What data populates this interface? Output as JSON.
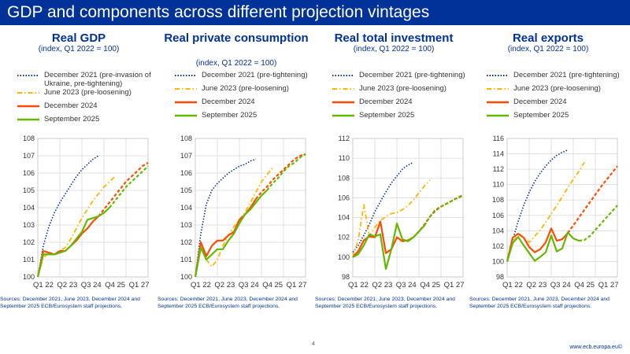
{
  "page_title": "GDP and components across different projection vintages",
  "page_number": "4",
  "footer_url": "www.ecb.europa.eu©",
  "colors": {
    "header": "#003299",
    "dec2021": "#003299",
    "jun2023": "#ffb400",
    "dec2024": "#ff4b00",
    "sep2025": "#65b800"
  },
  "panels": [
    {
      "title": "Real GDP",
      "subtitle": "(index, Q1 2022 = 100)",
      "legend": [
        {
          "label": "December 2021 (pre-invasion of Ukraine, pre-tightening)",
          "series": "dec2021"
        },
        {
          "label": "June 2023 (pre-loosening)",
          "series": "jun2023"
        },
        {
          "label": "December 2024",
          "series": "dec2024"
        },
        {
          "label": "September 2025",
          "series": "sep2025"
        }
      ],
      "sources": "Sources: December 2021, June 2023, December 2024 and September 2025 ECB/Eurosystem staff projections."
    },
    {
      "title": "Real private consumption",
      "subtitle": "(index, Q1 2022 = 100)",
      "legend": [
        {
          "label": "December 2021 (pre-tightening)",
          "series": "dec2021"
        },
        {
          "label": "June 2023 (pre-loosening)",
          "series": "jun2023"
        },
        {
          "label": "December 2024",
          "series": "dec2024"
        },
        {
          "label": "September 2025",
          "series": "sep2025"
        }
      ],
      "sources": "Sources: December 2021, June 2023, December 2024 and September 2025 ECB/Eurosystem staff projections."
    },
    {
      "title": "Real total investment",
      "subtitle": "(index, Q1 2022 = 100)",
      "legend": [
        {
          "label": "December 2021 (pre-tightening)",
          "series": "dec2021"
        },
        {
          "label": "June 2023 (pre-loosening)",
          "series": "jun2023"
        },
        {
          "label": "December 2024",
          "series": "dec2024"
        },
        {
          "label": "September 2025",
          "series": "sep2025"
        }
      ],
      "sources": "Sources: December 2021, June 2023, December 2024 and September 2025 ECB/Eurosystem staff projections."
    },
    {
      "title": "Real exports",
      "subtitle": "(index, Q1 2022 = 100)",
      "legend": [
        {
          "label": "December 2021 (pre-tightening)",
          "series": "dec2021"
        },
        {
          "label": "June 2023 (pre-loosening)",
          "series": "jun2023"
        },
        {
          "label": "December 2024",
          "series": "dec2024"
        },
        {
          "label": "September 2025",
          "series": "sep2025"
        }
      ],
      "sources": "Sources: December 2021, June 2023, December 2024 and September 2025 ECB/Eurosystem staff projections."
    }
  ],
  "chart_data": [
    {
      "type": "line",
      "title": "Real GDP",
      "ylabel": "index, Q1 2022 = 100",
      "ylim": [
        100,
        108
      ],
      "yticks": [
        100,
        101,
        102,
        103,
        104,
        105,
        106,
        107,
        108
      ],
      "x_tick_labels": [
        "Q1 22",
        "Q2 23",
        "Q3 24",
        "Q4 25",
        "Q1 27"
      ],
      "x_range": [
        0,
        20
      ],
      "series": [
        {
          "name": "December 2021 (pre-invasion of Ukraine, pre-tightening)",
          "key": "dec2021",
          "style": "dotted",
          "x": [
            0,
            1,
            2,
            3,
            4,
            5,
            6,
            7,
            8,
            9,
            10,
            11
          ],
          "values": [
            100,
            101.8,
            102.9,
            103.7,
            104.3,
            104.8,
            105.3,
            105.8,
            106.2,
            106.5,
            106.8,
            107.0
          ]
        },
        {
          "name": "June 2023 (pre-loosening)",
          "key": "jun2023",
          "style": "dashdot",
          "x": [
            0,
            1,
            2,
            3,
            4,
            5,
            6,
            7,
            8,
            9,
            10,
            11,
            12,
            13,
            14
          ],
          "values": [
            100,
            101.1,
            101.4,
            101.3,
            101.5,
            101.7,
            102.2,
            102.8,
            103.4,
            103.9,
            104.4,
            104.8,
            105.2,
            105.5,
            105.8
          ]
        },
        {
          "name": "December 2024",
          "key": "dec2024",
          "style": "solid",
          "x": [
            0,
            1,
            2,
            3,
            4,
            5,
            6,
            7,
            8,
            9,
            10,
            11
          ],
          "values": [
            100,
            101.5,
            101.4,
            101.3,
            101.5,
            101.5,
            101.8,
            102.1,
            102.5,
            102.8,
            103.2,
            103.5
          ]
        },
        {
          "name": "December 2024 (projection)",
          "key": "dec2024",
          "style": "dashed",
          "x": [
            11,
            12,
            13,
            14,
            15,
            16,
            17,
            18,
            19,
            20
          ],
          "values": [
            103.5,
            103.9,
            104.3,
            104.7,
            105.1,
            105.5,
            105.8,
            106.1,
            106.4,
            106.6
          ]
        },
        {
          "name": "September 2025",
          "key": "sep2025",
          "style": "solid",
          "x": [
            0,
            1,
            2,
            3,
            4,
            5,
            6,
            7,
            8,
            9,
            10,
            11,
            12,
            13
          ],
          "values": [
            100,
            101.3,
            101.3,
            101.3,
            101.4,
            101.5,
            101.8,
            102.2,
            102.6,
            103.3,
            103.4,
            103.5,
            103.7,
            104.0
          ]
        },
        {
          "name": "September 2025 (projection)",
          "key": "sep2025",
          "style": "dashed",
          "x": [
            13,
            14,
            15,
            16,
            17,
            18,
            19,
            20
          ],
          "values": [
            104.0,
            104.4,
            104.8,
            105.2,
            105.5,
            105.8,
            106.1,
            106.4
          ]
        }
      ]
    },
    {
      "type": "line",
      "title": "Real private consumption",
      "ylabel": "index, Q1 2022 = 100",
      "ylim": [
        100,
        108
      ],
      "yticks": [
        100,
        101,
        102,
        103,
        104,
        105,
        106,
        107,
        108
      ],
      "x_tick_labels": [
        "Q1 22",
        "Q2 23",
        "Q3 24",
        "Q4 25",
        "Q1 27"
      ],
      "x_range": [
        0,
        20
      ],
      "series": [
        {
          "name": "December 2021 (pre-tightening)",
          "key": "dec2021",
          "style": "dotted",
          "x": [
            0,
            1,
            2,
            3,
            4,
            5,
            6,
            7,
            8,
            9,
            10,
            11
          ],
          "values": [
            100,
            102.5,
            104.2,
            105.0,
            105.4,
            105.7,
            106.0,
            106.2,
            106.4,
            106.5,
            106.7,
            106.8
          ]
        },
        {
          "name": "June 2023 (pre-loosening)",
          "key": "jun2023",
          "style": "dashdot",
          "x": [
            0,
            1,
            2,
            3,
            4,
            5,
            6,
            7,
            8,
            9,
            10,
            11,
            12,
            13,
            14
          ],
          "values": [
            100,
            102.0,
            101.0,
            100.6,
            101.0,
            101.8,
            102.4,
            102.9,
            103.3,
            103.7,
            104.3,
            104.9,
            105.5,
            105.9,
            106.3
          ]
        },
        {
          "name": "December 2024",
          "key": "dec2024",
          "style": "solid",
          "x": [
            0,
            1,
            2,
            3,
            4,
            5,
            6,
            7,
            8,
            9,
            10,
            11
          ],
          "values": [
            100,
            102.0,
            101.2,
            101.8,
            102.1,
            102.1,
            102.4,
            102.6,
            103.3,
            103.6,
            104.0,
            104.5
          ]
        },
        {
          "name": "December 2024 (projection)",
          "key": "dec2024",
          "style": "dashed",
          "x": [
            11,
            12,
            13,
            14,
            15,
            16,
            17,
            18,
            19,
            20
          ],
          "values": [
            104.5,
            104.9,
            105.2,
            105.6,
            105.9,
            106.2,
            106.5,
            106.8,
            107.0,
            107.1
          ]
        },
        {
          "name": "September 2025",
          "key": "sep2025",
          "style": "solid",
          "x": [
            0,
            1,
            2,
            3,
            4,
            5,
            6,
            7,
            8,
            9,
            10,
            11,
            12,
            13
          ],
          "values": [
            100,
            101.7,
            101.0,
            101.3,
            101.6,
            101.6,
            102.1,
            102.5,
            103.1,
            103.6,
            103.9,
            104.3,
            104.7,
            105.0
          ]
        },
        {
          "name": "September 2025 (projection)",
          "key": "sep2025",
          "style": "dashed",
          "x": [
            13,
            14,
            15,
            16,
            17,
            18,
            19,
            20
          ],
          "values": [
            105.0,
            105.4,
            105.7,
            106.1,
            106.4,
            106.6,
            106.9,
            107.1
          ]
        }
      ]
    },
    {
      "type": "line",
      "title": "Real total investment",
      "ylabel": "index, Q1 2022 = 100",
      "ylim": [
        98,
        112
      ],
      "yticks": [
        98,
        100,
        102,
        104,
        106,
        108,
        110,
        112
      ],
      "x_tick_labels": [
        "Q1 22",
        "Q2 23",
        "Q3 24",
        "Q4 25",
        "Q1 27"
      ],
      "x_range": [
        0,
        20
      ],
      "series": [
        {
          "name": "December 2021 (pre-tightening)",
          "key": "dec2021",
          "style": "dotted",
          "x": [
            0,
            1,
            2,
            3,
            4,
            5,
            6,
            7,
            8,
            9,
            10,
            11
          ],
          "values": [
            100.5,
            101.2,
            102.2,
            103.3,
            104.6,
            105.6,
            106.6,
            107.5,
            108.2,
            108.9,
            109.3,
            109.6
          ]
        },
        {
          "name": "June 2023 (pre-loosening)",
          "key": "jun2023",
          "style": "dashdot",
          "x": [
            0,
            1,
            2,
            3,
            4,
            5,
            6,
            7,
            8,
            9,
            10,
            11,
            12,
            13,
            14
          ],
          "values": [
            100,
            101.8,
            105.3,
            102.1,
            103.0,
            103.7,
            104.1,
            104.4,
            104.5,
            104.8,
            105.2,
            105.8,
            106.5,
            107.2,
            107.8
          ]
        },
        {
          "name": "December 2024",
          "key": "dec2024",
          "style": "solid",
          "x": [
            0,
            1,
            2,
            3,
            4,
            5,
            6,
            7,
            8,
            9,
            10,
            11
          ],
          "values": [
            100,
            100.6,
            101.7,
            102.1,
            102.0,
            103.6,
            100.4,
            100.8,
            102.0,
            101.6,
            101.7,
            102.0
          ]
        },
        {
          "name": "December 2024 (projection)",
          "key": "dec2024",
          "style": "dashed",
          "x": [
            11,
            12,
            13,
            14,
            15,
            16,
            17,
            18,
            19,
            20
          ],
          "values": [
            102.0,
            102.6,
            103.3,
            104.1,
            104.7,
            105.1,
            105.4,
            105.7,
            106.0,
            106.2
          ]
        },
        {
          "name": "September 2025",
          "key": "sep2025",
          "style": "solid",
          "x": [
            0,
            1,
            2,
            3,
            4,
            5,
            6,
            7,
            8,
            9,
            10,
            11,
            12,
            13
          ],
          "values": [
            100,
            100.3,
            101.2,
            102.3,
            102.1,
            102.3,
            98.8,
            100.8,
            103.4,
            101.8,
            101.6,
            102.0,
            102.6,
            103.2
          ]
        },
        {
          "name": "September 2025 (projection)",
          "key": "sep2025",
          "style": "dashed",
          "x": [
            13,
            14,
            15,
            16,
            17,
            18,
            19,
            20
          ],
          "values": [
            103.2,
            104.1,
            104.8,
            105.1,
            105.4,
            105.7,
            106.0,
            106.3
          ]
        }
      ]
    },
    {
      "type": "line",
      "title": "Real exports",
      "ylabel": "index, Q1 2022 = 100",
      "ylim": [
        98,
        116
      ],
      "yticks": [
        98,
        100,
        102,
        104,
        106,
        108,
        110,
        112,
        114,
        116
      ],
      "x_tick_labels": [
        "Q1 22",
        "Q2 23",
        "Q3 24",
        "Q4 25",
        "Q1 27"
      ],
      "x_range": [
        0,
        20
      ],
      "series": [
        {
          "name": "December 2021 (pre-tightening)",
          "key": "dec2021",
          "style": "dotted",
          "x": [
            0,
            1,
            2,
            3,
            4,
            5,
            6,
            7,
            8,
            9,
            10,
            11
          ],
          "values": [
            100,
            102.8,
            105.2,
            107.3,
            109.0,
            110.4,
            111.5,
            112.4,
            113.2,
            113.8,
            114.2,
            114.5
          ]
        },
        {
          "name": "June 2023 (pre-loosening)",
          "key": "jun2023",
          "style": "dashdot",
          "x": [
            0,
            1,
            2,
            3,
            4,
            5,
            6,
            7,
            8,
            9,
            10,
            11,
            12,
            13,
            14
          ],
          "values": [
            100,
            102.3,
            103.7,
            103.1,
            102.5,
            103.3,
            104.1,
            105.1,
            106.2,
            107.3,
            108.4,
            109.6,
            110.7,
            111.7,
            112.9
          ]
        },
        {
          "name": "December 2024",
          "key": "dec2024",
          "style": "solid",
          "x": [
            0,
            1,
            2,
            3,
            4,
            5,
            6,
            7,
            8,
            9,
            10,
            11
          ],
          "values": [
            100,
            103.1,
            103.6,
            103.1,
            101.9,
            101.2,
            101.6,
            102.5,
            104.3,
            102.7,
            102.9,
            103.7
          ]
        },
        {
          "name": "December 2024 (projection)",
          "key": "dec2024",
          "style": "dashed",
          "x": [
            11,
            12,
            13,
            14,
            15,
            16,
            17,
            18,
            19,
            20
          ],
          "values": [
            103.7,
            104.7,
            105.7,
            106.7,
            107.7,
            108.7,
            109.7,
            110.6,
            111.5,
            112.4
          ]
        },
        {
          "name": "September 2025",
          "key": "sep2025",
          "style": "solid",
          "x": [
            0,
            1,
            2,
            3,
            4,
            5,
            6,
            7,
            8,
            9,
            10,
            11,
            12,
            13
          ],
          "values": [
            100,
            102.4,
            103.2,
            102.1,
            101.1,
            100.1,
            100.6,
            101.2,
            103.4,
            101.3,
            101.7,
            103.8,
            103.0,
            102.7
          ]
        },
        {
          "name": "September 2025 (projection)",
          "key": "sep2025",
          "style": "dashed",
          "x": [
            13,
            14,
            15,
            16,
            17,
            18,
            19,
            20
          ],
          "values": [
            102.7,
            102.8,
            103.3,
            104.1,
            104.9,
            105.7,
            106.5,
            107.3
          ]
        }
      ]
    }
  ]
}
